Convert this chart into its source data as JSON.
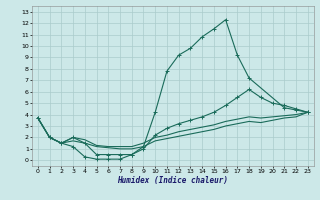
{
  "xlabel": "Humidex (Indice chaleur)",
  "bg_color": "#cce8e8",
  "grid_color": "#aacccc",
  "line_color": "#1a6b5a",
  "xlim": [
    -0.5,
    23.5
  ],
  "ylim": [
    -0.5,
    13.5
  ],
  "xticks": [
    0,
    1,
    2,
    3,
    4,
    5,
    6,
    7,
    8,
    9,
    10,
    11,
    12,
    13,
    14,
    15,
    16,
    17,
    18,
    19,
    20,
    21,
    22,
    23
  ],
  "yticks": [
    0,
    1,
    2,
    3,
    4,
    5,
    6,
    7,
    8,
    9,
    10,
    11,
    12,
    13
  ],
  "line1_x": [
    0,
    1,
    2,
    3,
    4,
    5,
    6,
    7,
    8,
    9,
    10,
    11,
    12,
    13,
    14,
    15,
    16,
    17,
    18,
    21,
    22,
    23
  ],
  "line1_y": [
    3.7,
    2.0,
    1.5,
    1.2,
    0.3,
    0.1,
    0.1,
    0.1,
    0.5,
    1.2,
    4.2,
    7.8,
    9.2,
    9.8,
    10.8,
    11.5,
    12.3,
    9.2,
    7.2,
    4.6,
    4.4,
    4.2
  ],
  "line2_x": [
    0,
    1,
    2,
    3,
    4,
    5,
    6,
    7,
    8,
    9,
    10,
    11,
    12,
    13,
    14,
    15,
    16,
    17,
    18,
    19,
    20,
    21,
    22,
    23
  ],
  "line2_y": [
    3.7,
    2.0,
    1.5,
    2.0,
    1.5,
    0.5,
    0.5,
    0.5,
    0.5,
    1.0,
    2.2,
    2.8,
    3.2,
    3.5,
    3.8,
    4.2,
    4.8,
    5.5,
    6.2,
    5.5,
    5.0,
    4.8,
    4.5,
    4.2
  ],
  "line3_x": [
    0,
    1,
    2,
    3,
    4,
    5,
    6,
    7,
    8,
    9,
    10,
    11,
    12,
    13,
    14,
    15,
    16,
    17,
    18,
    19,
    20,
    21,
    22,
    23
  ],
  "line3_y": [
    3.7,
    2.0,
    1.5,
    2.0,
    1.8,
    1.3,
    1.2,
    1.2,
    1.2,
    1.5,
    2.0,
    2.2,
    2.5,
    2.7,
    2.9,
    3.1,
    3.4,
    3.6,
    3.8,
    3.7,
    3.8,
    3.9,
    4.0,
    4.2
  ],
  "line4_x": [
    0,
    1,
    2,
    3,
    4,
    5,
    6,
    7,
    8,
    9,
    10,
    11,
    12,
    13,
    14,
    15,
    16,
    17,
    18,
    19,
    20,
    21,
    22,
    23
  ],
  "line4_y": [
    3.7,
    2.0,
    1.5,
    1.7,
    1.5,
    1.2,
    1.1,
    1.0,
    1.0,
    1.2,
    1.7,
    1.9,
    2.1,
    2.3,
    2.5,
    2.7,
    3.0,
    3.2,
    3.4,
    3.3,
    3.5,
    3.7,
    3.8,
    4.2
  ]
}
